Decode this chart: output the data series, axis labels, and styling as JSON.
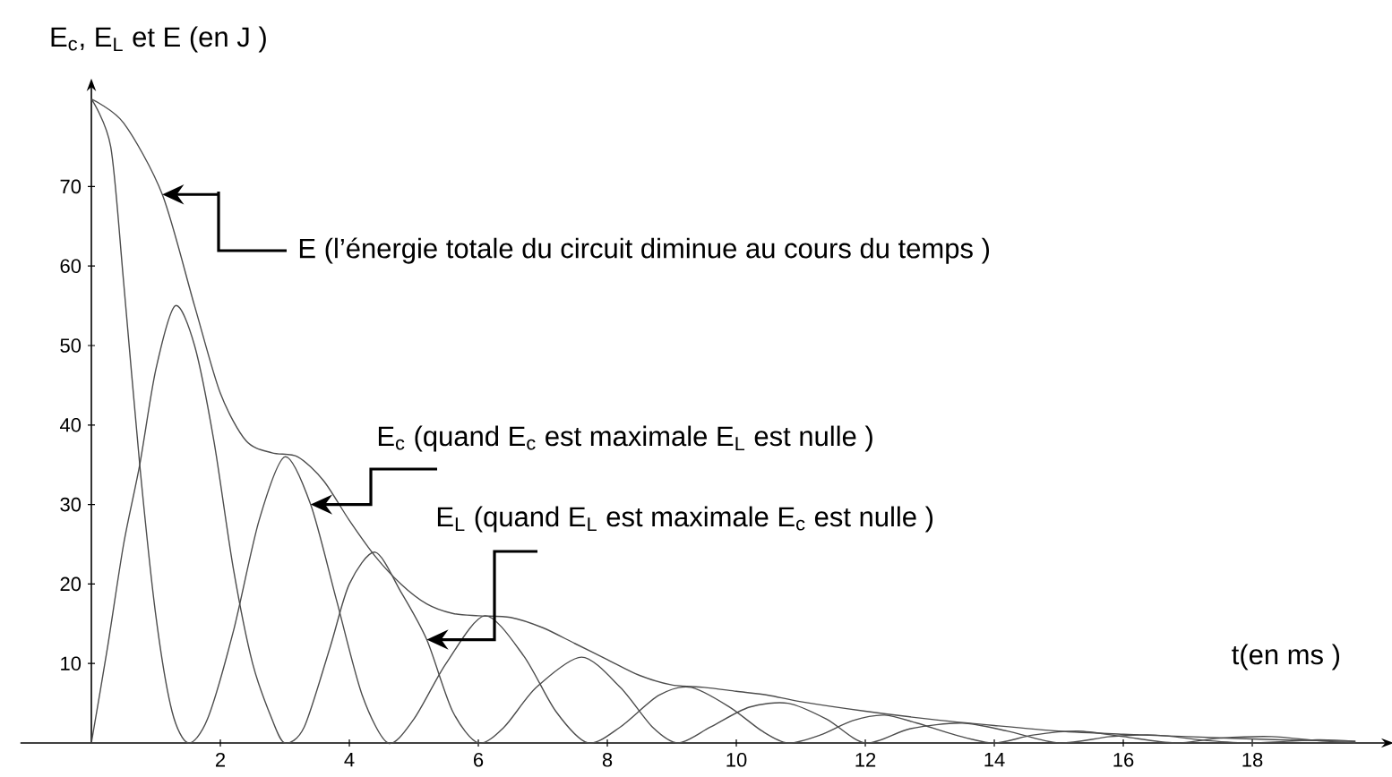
{
  "chart_data": {
    "type": "line",
    "ylabel": "E$_{c}$, E$_{L}$ et E (en J )",
    "xlabel": "t(en ms )",
    "xlim": [
      -1.1,
      20
    ],
    "ylim": [
      0,
      82
    ],
    "xticks": [
      2,
      4,
      6,
      8,
      10,
      12,
      14,
      16,
      18
    ],
    "yticks": [
      10,
      20,
      30,
      40,
      50,
      60,
      70
    ],
    "marker": "none",
    "line_style": "solid",
    "series": [
      {
        "color": "#4d4d4d",
        "x": [
          0,
          0.5,
          1.1,
          1.6,
          2.0,
          2.4,
          2.8,
          3.2,
          3.6,
          4.0,
          4.4,
          4.8,
          5.2,
          5.6,
          6.0,
          6.5,
          7.0,
          7.5,
          8.0,
          8.5,
          9.0,
          9.5,
          10.0,
          10.5,
          11.0,
          12.0,
          13.0,
          14.0,
          15.0,
          16.0,
          17.0,
          18.0,
          19.0,
          19.6
        ],
        "values": [
          81,
          78,
          69,
          55,
          44,
          38,
          36.5,
          36,
          33,
          28,
          23.5,
          20,
          17.5,
          16.3,
          16,
          15.8,
          14.5,
          12.5,
          10.5,
          8.5,
          7.3,
          7,
          6.5,
          6,
          5.2,
          4,
          3,
          2.2,
          1.5,
          1.1,
          0.8,
          0.5,
          0.3,
          0.2
        ]
      },
      {
        "color": "#4d4d4d",
        "x": [
          0,
          0.3,
          0.5,
          0.75,
          1.0,
          1.25,
          1.5,
          1.8,
          2.2,
          2.6,
          3.0,
          3.4,
          3.8,
          4.2,
          4.6,
          5.0,
          5.5,
          6.1,
          6.7,
          7.2,
          7.7,
          8.2,
          8.8,
          9.3,
          9.9,
          10.4,
          10.8,
          11.3,
          11.8,
          12.3,
          12.8,
          13.4,
          14.0,
          14.6,
          15.3,
          16.0,
          16.8,
          17.5,
          18.3,
          19.0,
          19.6
        ],
        "values": [
          81,
          75,
          58,
          35,
          16,
          4,
          0,
          3,
          14,
          28,
          36,
          30,
          18,
          6,
          0,
          3,
          10,
          16,
          11,
          4,
          0,
          2,
          6,
          7,
          4.5,
          1.5,
          0,
          1,
          2.8,
          3.5,
          2.5,
          1,
          0,
          1,
          1.5,
          0.8,
          0,
          0.6,
          0.8,
          0.3,
          0
        ]
      },
      {
        "color": "#4d4d4d",
        "x": [
          0,
          0.25,
          0.5,
          0.75,
          1.0,
          1.3,
          1.6,
          1.9,
          2.2,
          2.5,
          2.8,
          3.0,
          3.3,
          3.7,
          4.0,
          4.4,
          4.8,
          5.2,
          5.6,
          6.0,
          6.4,
          6.9,
          7.6,
          8.2,
          8.7,
          9.1,
          9.6,
          10.2,
          10.8,
          11.4,
          12.0,
          12.7,
          13.5,
          14.2,
          15.0,
          15.8,
          16.5,
          17.3,
          18.0,
          19.0,
          19.6
        ],
        "values": [
          0,
          12,
          25,
          35,
          47,
          55,
          50,
          38,
          22,
          10,
          3,
          0,
          2,
          12,
          20,
          24,
          19,
          13,
          4,
          0,
          2,
          7,
          10.8,
          7,
          2,
          0,
          2,
          4.5,
          5,
          3,
          0,
          1.8,
          2.5,
          1.5,
          0,
          0.8,
          1,
          0.3,
          0,
          0.4,
          0.2
        ]
      }
    ],
    "annotations": [
      {
        "text": "E   (l’énergie totale du circuit diminue au cours du temps )",
        "x": 1.1,
        "y": 69
      },
      {
        "text": "E$_{c}$ (quand E$_{c}$ est maximale E$_{L}$ est nulle )",
        "x": 3.4,
        "y": 30
      },
      {
        "text": "E$_{L}$ (quand E$_{L}$ est maximale E$_{c}$ est nulle )",
        "x": 5.2,
        "y": 13
      }
    ]
  }
}
